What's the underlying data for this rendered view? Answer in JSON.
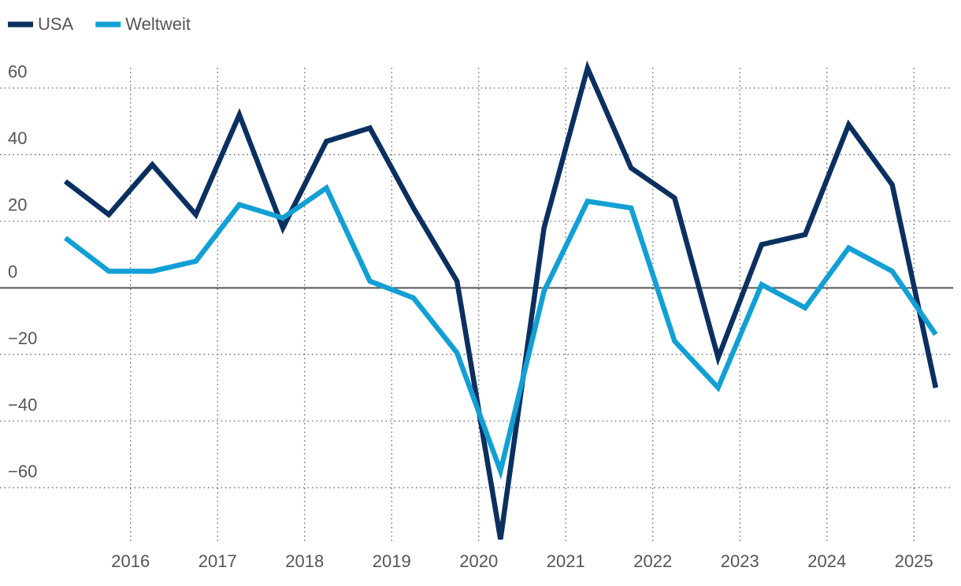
{
  "chart_data": {
    "type": "line",
    "xlim": [
      2014.5,
      2025.45
    ],
    "xticks": [
      2016,
      2017,
      2018,
      2019,
      2020,
      2021,
      2022,
      2023,
      2024,
      2025
    ],
    "ylim": [
      -77,
      68
    ],
    "yticks": [
      {
        "value": -60,
        "label": "−60"
      },
      {
        "value": -40,
        "label": "−40"
      },
      {
        "value": -20,
        "label": "−20"
      },
      0,
      20,
      40,
      60
    ],
    "grid": true,
    "legend": "top-left",
    "x": [
      2015.25,
      2015.75,
      2016.25,
      2016.75,
      2017.25,
      2017.75,
      2018.25,
      2018.75,
      2019.25,
      2019.75,
      2020.25,
      2020.75,
      2021.25,
      2021.75,
      2022.25,
      2022.75,
      2023.25,
      2023.75,
      2024.25,
      2024.75,
      2025.25
    ],
    "series": [
      {
        "name": "USA",
        "color": "#0b3060",
        "values": [
          32,
          22,
          37,
          22,
          52,
          18,
          44,
          48,
          24,
          2,
          -75.5,
          18,
          66,
          36,
          27,
          -21,
          13,
          16,
          49,
          31,
          -30
        ]
      },
      {
        "name": "Weltweit",
        "color": "#12a0d4",
        "values": [
          15,
          5,
          5,
          8,
          25,
          21,
          30,
          2,
          -3,
          -19.5,
          -55,
          -1,
          26,
          24,
          -16,
          -30,
          1,
          -6,
          12,
          5,
          -14
        ]
      }
    ]
  }
}
